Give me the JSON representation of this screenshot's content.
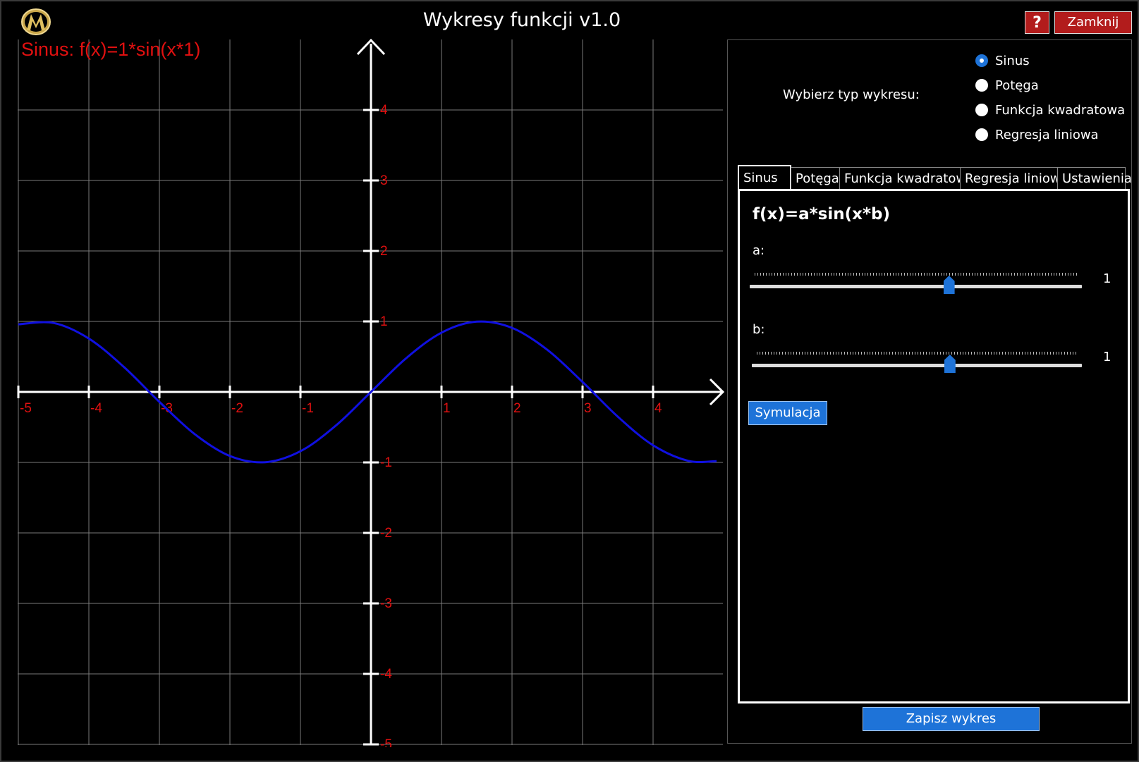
{
  "window": {
    "title": "Wykresy funkcji v1.0",
    "help_label": "?",
    "close_label": "Zamknij"
  },
  "plot": {
    "title": "Sinus: f(x)=1*sin(x*1)",
    "curve_color": "#1010e0",
    "label_color": "#e01010",
    "grid_color": "#7a7a7a"
  },
  "chart_data": {
    "type": "line",
    "title": "Sinus: f(x)=1*sin(x*1)",
    "xlim": [
      -5,
      5
    ],
    "ylim": [
      -5,
      5
    ],
    "x_ticks": [
      "-5",
      "-4",
      "-3",
      "-2",
      "-1",
      "1",
      "2",
      "3",
      "4"
    ],
    "y_ticks": [
      "4",
      "3",
      "2",
      "1",
      "-1",
      "-2",
      "-3",
      "-4",
      "-5"
    ],
    "grid": true,
    "series": [
      {
        "function": "1*sin(x*1)",
        "color": "#1010e0",
        "x": [
          -5,
          -4.5,
          -4,
          -3.5,
          -3,
          -2.5,
          -2,
          -1.5,
          -1,
          -0.5,
          0,
          0.5,
          1,
          1.5,
          2,
          2.5,
          3,
          3.5,
          4,
          4.5,
          4.9
        ],
        "y": [
          0.959,
          0.978,
          0.757,
          0.351,
          -0.141,
          -0.598,
          -0.909,
          -0.997,
          -0.841,
          -0.479,
          0,
          0.479,
          0.841,
          0.997,
          0.909,
          0.598,
          0.141,
          -0.351,
          -0.757,
          -0.978,
          -0.982
        ]
      }
    ]
  },
  "chart_type": {
    "prompt": "Wybierz typ wykresu:",
    "options": [
      {
        "label": "Sinus",
        "selected": true
      },
      {
        "label": "Potęga",
        "selected": false
      },
      {
        "label": "Funkcja kwadratowa",
        "selected": false
      },
      {
        "label": "Regresja liniowa",
        "selected": false
      }
    ]
  },
  "tabs": [
    {
      "label": "Sinus",
      "active": true
    },
    {
      "label": "Potęga",
      "active": false
    },
    {
      "label": "Funkcja kwadratowa",
      "active": false
    },
    {
      "label": "Regresja liniowa",
      "active": false
    },
    {
      "label": "Ustawienia",
      "active": false
    }
  ],
  "sinus_tab": {
    "formula": "f(x)=a*sin(x*b)",
    "sliders": [
      {
        "label": "a:",
        "value": "1",
        "fraction": 0.6
      },
      {
        "label": "b:",
        "value": "1",
        "fraction": 0.6
      }
    ],
    "simulate_label": "Symulacja"
  },
  "save_label": "Zapisz wykres",
  "colors": {
    "accent": "#1e73d8",
    "danger": "#b21c1c"
  }
}
